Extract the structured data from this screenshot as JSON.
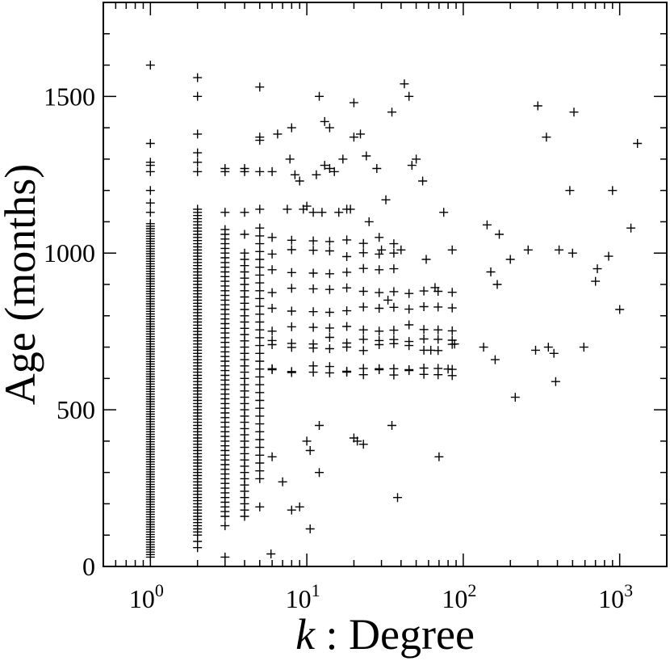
{
  "chart_data": {
    "type": "scatter",
    "marker": "plus",
    "marker_color": "#000000",
    "xlabel_var": "k",
    "xlabel_rest": " : Degree",
    "ylabel": "Age (months)",
    "x_scale": "log",
    "xlim": [
      0.5,
      2000
    ],
    "ylim": [
      0,
      1800
    ],
    "x_ticks": [
      {
        "base": "10",
        "exp": "0",
        "value": 1
      },
      {
        "base": "10",
        "exp": "1",
        "value": 10
      },
      {
        "base": "10",
        "exp": "2",
        "value": 100
      },
      {
        "base": "10",
        "exp": "3",
        "value": 1000
      }
    ],
    "y_ticks": [
      {
        "label": "0",
        "value": 0
      },
      {
        "label": "500",
        "value": 500
      },
      {
        "label": "1000",
        "value": 1000
      },
      {
        "label": "1500",
        "value": 1500
      }
    ],
    "dense_columns": [
      {
        "x": 1,
        "y_range": [
          30,
          1100
        ],
        "step": 8,
        "extra_y": [
          1130,
          1160,
          1200,
          1260,
          1280,
          1290,
          1350,
          1600
        ]
      },
      {
        "x": 2,
        "y_range": [
          100,
          1140
        ],
        "step": 10,
        "extra_y": [
          60,
          80,
          1260,
          1290,
          1320,
          1380,
          1500,
          1560
        ]
      },
      {
        "x": 3,
        "y_range": [
          160,
          1080
        ],
        "step": 15,
        "extra_y": [
          30,
          130,
          1130,
          1260,
          1270
        ]
      },
      {
        "x": 4,
        "y_range": [
          160,
          1000
        ],
        "step": 20,
        "extra_y": [
          1060,
          1130,
          1260,
          1270
        ]
      },
      {
        "x": 5,
        "y_range": [
          280,
          1080
        ],
        "step": 25,
        "extra_y": [
          190,
          1140,
          1260,
          1360,
          1370,
          1530
        ]
      }
    ],
    "points": [
      [
        5.9,
        40
      ],
      [
        6,
        350
      ],
      [
        6,
        1260
      ],
      [
        6.5,
        1380
      ],
      [
        7,
        270
      ],
      [
        7.5,
        1140
      ],
      [
        7.8,
        1300
      ],
      [
        8,
        180
      ],
      [
        8,
        1400
      ],
      [
        8.4,
        1250
      ],
      [
        9,
        190
      ],
      [
        9,
        1230
      ],
      [
        9.5,
        1140
      ],
      [
        10,
        400
      ],
      [
        10,
        1150
      ],
      [
        10.5,
        120
      ],
      [
        10.5,
        370
      ],
      [
        11,
        1130
      ],
      [
        11.5,
        1250
      ],
      [
        12,
        300
      ],
      [
        12,
        450
      ],
      [
        12,
        1500
      ],
      [
        12.5,
        1130
      ],
      [
        13,
        1280
      ],
      [
        13,
        1420
      ],
      [
        14,
        1400
      ],
      [
        14,
        1270
      ],
      [
        15,
        1260
      ],
      [
        16,
        1130
      ],
      [
        17,
        1300
      ],
      [
        18,
        1140
      ],
      [
        19,
        1140
      ],
      [
        20,
        410
      ],
      [
        20,
        1480
      ],
      [
        20,
        1370
      ],
      [
        21,
        400
      ],
      [
        22,
        1380
      ],
      [
        23,
        390
      ],
      [
        24,
        1310
      ],
      [
        25,
        1100
      ],
      [
        28,
        1270
      ],
      [
        30,
        1010
      ],
      [
        32,
        1170
      ],
      [
        33,
        850
      ],
      [
        35,
        450
      ],
      [
        35,
        1450
      ],
      [
        38,
        220
      ],
      [
        40,
        1010
      ],
      [
        42,
        1540
      ],
      [
        45,
        1500
      ],
      [
        47,
        1280
      ],
      [
        50,
        1300
      ],
      [
        55,
        1230
      ],
      [
        58,
        980
      ],
      [
        62,
        690
      ],
      [
        66,
        890
      ],
      [
        70,
        350
      ],
      [
        75,
        1130
      ],
      [
        80,
        630
      ],
      [
        85,
        1010
      ],
      [
        88,
        710
      ],
      [
        135,
        700
      ],
      [
        142,
        1090
      ],
      [
        150,
        940
      ],
      [
        160,
        660
      ],
      [
        165,
        900
      ],
      [
        170,
        1060
      ],
      [
        200,
        980
      ],
      [
        215,
        540
      ],
      [
        260,
        1010
      ],
      [
        290,
        690
      ],
      [
        300,
        1470
      ],
      [
        340,
        1370
      ],
      [
        350,
        700
      ],
      [
        380,
        680
      ],
      [
        390,
        590
      ],
      [
        410,
        1010
      ],
      [
        480,
        1200
      ],
      [
        500,
        1000
      ],
      [
        510,
        1450
      ],
      [
        590,
        700
      ],
      [
        700,
        910
      ],
      [
        720,
        950
      ],
      [
        850,
        990
      ],
      [
        900,
        1200
      ],
      [
        1000,
        820
      ],
      [
        1180,
        1080
      ],
      [
        1300,
        1350
      ]
    ],
    "band_y": [
      700,
      630,
      620,
      720,
      760,
      820,
      880,
      940,
      1000,
      1040
    ]
  }
}
